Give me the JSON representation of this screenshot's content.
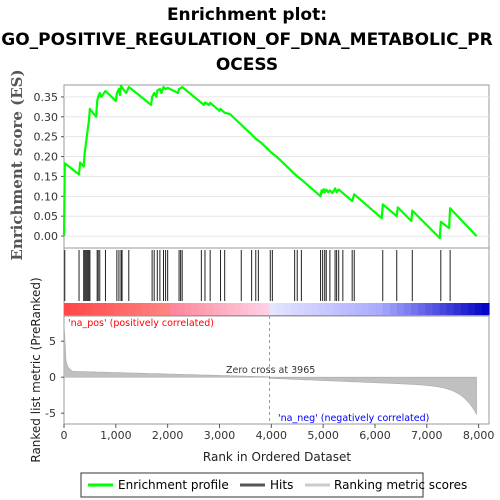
{
  "chart_data": {
    "type": "line",
    "title_lines": [
      "Enrichment plot:",
      "GO_POSITIVE_REGULATION_OF_DNA_METABOLIC_PR",
      "OCESS"
    ],
    "ylabel_top": "Enrichment score (ES)",
    "ylabel_bottom": "Ranked list metric (PreRanked)",
    "xlabel": "Rank in Ordered Dataset",
    "xlim": [
      0,
      8200
    ],
    "ylim_top": [
      -0.03,
      0.38
    ],
    "ylim_bottom": [
      -6.5,
      8.5
    ],
    "x_ticks": [
      0,
      1000,
      2000,
      3000,
      4000,
      5000,
      6000,
      7000,
      8000
    ],
    "x_tick_labels": [
      "0",
      "1,000",
      "2,000",
      "3,000",
      "4,000",
      "5,000",
      "6,000",
      "7,000",
      "8,000"
    ],
    "y_ticks_top": [
      0.0,
      0.05,
      0.1,
      0.15,
      0.2,
      0.25,
      0.3,
      0.35
    ],
    "y_tick_labels_top": [
      "0.00",
      "0.05",
      "0.10",
      "0.15",
      "0.20",
      "0.25",
      "0.30",
      "0.35"
    ],
    "y_ticks_bottom": [
      -5,
      0,
      5
    ],
    "y_tick_labels_bottom": [
      "-5",
      "0",
      "5"
    ],
    "enrichment_profile": {
      "x": [
        0,
        15,
        290,
        310,
        380,
        400,
        420,
        440,
        460,
        480,
        500,
        620,
        640,
        660,
        690,
        720,
        800,
        1000,
        1020,
        1060,
        1080,
        1100,
        1140,
        1200,
        1250,
        1300,
        1680,
        1700,
        1740,
        1780,
        1800,
        1850,
        1880,
        1920,
        1960,
        2000,
        2200,
        2220,
        2250,
        2280,
        2700,
        2720,
        2800,
        2820,
        3000,
        3020,
        3100,
        3200,
        3500,
        3600,
        3700,
        3800,
        4000,
        4100,
        4500,
        4550,
        4600,
        4950,
        4970,
        4990,
        5010,
        5030,
        5060,
        5100,
        5130,
        5180,
        5230,
        5260,
        5300,
        5560,
        5600,
        6130,
        6150,
        6420,
        6440,
        6700,
        6720,
        7250,
        7270,
        7430,
        7450,
        7960
      ],
      "y": [
        0.0,
        0.183,
        0.155,
        0.185,
        0.175,
        0.21,
        0.23,
        0.25,
        0.27,
        0.29,
        0.32,
        0.3,
        0.34,
        0.35,
        0.36,
        0.35,
        0.365,
        0.34,
        0.36,
        0.37,
        0.355,
        0.378,
        0.37,
        0.36,
        0.375,
        0.37,
        0.33,
        0.35,
        0.36,
        0.35,
        0.366,
        0.37,
        0.36,
        0.375,
        0.37,
        0.373,
        0.36,
        0.37,
        0.372,
        0.375,
        0.33,
        0.336,
        0.33,
        0.335,
        0.315,
        0.32,
        0.31,
        0.307,
        0.27,
        0.258,
        0.245,
        0.235,
        0.21,
        0.2,
        0.15,
        0.145,
        0.14,
        0.1,
        0.115,
        0.11,
        0.118,
        0.11,
        0.117,
        0.11,
        0.115,
        0.108,
        0.12,
        0.11,
        0.117,
        0.088,
        0.105,
        0.045,
        0.08,
        0.05,
        0.072,
        0.038,
        0.064,
        -0.005,
        0.036,
        0.02,
        0.07,
        0.0
      ]
    },
    "hits": [
      15,
      290,
      380,
      400,
      420,
      440,
      460,
      480,
      500,
      640,
      660,
      690,
      800,
      1020,
      1060,
      1100,
      1120,
      1250,
      1700,
      1740,
      1800,
      1850,
      1920,
      1960,
      2000,
      2220,
      2250,
      2280,
      2650,
      2720,
      2820,
      3020,
      3100,
      3420,
      3620,
      3700,
      3750,
      3980,
      4020,
      4450,
      4500,
      4580,
      4950,
      4990,
      5030,
      5060,
      5130,
      5230,
      5260,
      5300,
      5380,
      5560,
      5600,
      6150,
      6420,
      6720,
      7270,
      7450
    ],
    "zero_cross": 3965,
    "annotations": {
      "pos": "'na_pos' (positively correlated)",
      "neg": "'na_neg' (negatively correlated)",
      "zero": "Zero cross at 3965"
    },
    "legend": [
      {
        "label": "Enrichment profile",
        "color": "#00ff00"
      },
      {
        "label": "Hits",
        "color": "#555555"
      },
      {
        "label": "Ranking metric scores",
        "color": "#cccccc"
      }
    ]
  }
}
